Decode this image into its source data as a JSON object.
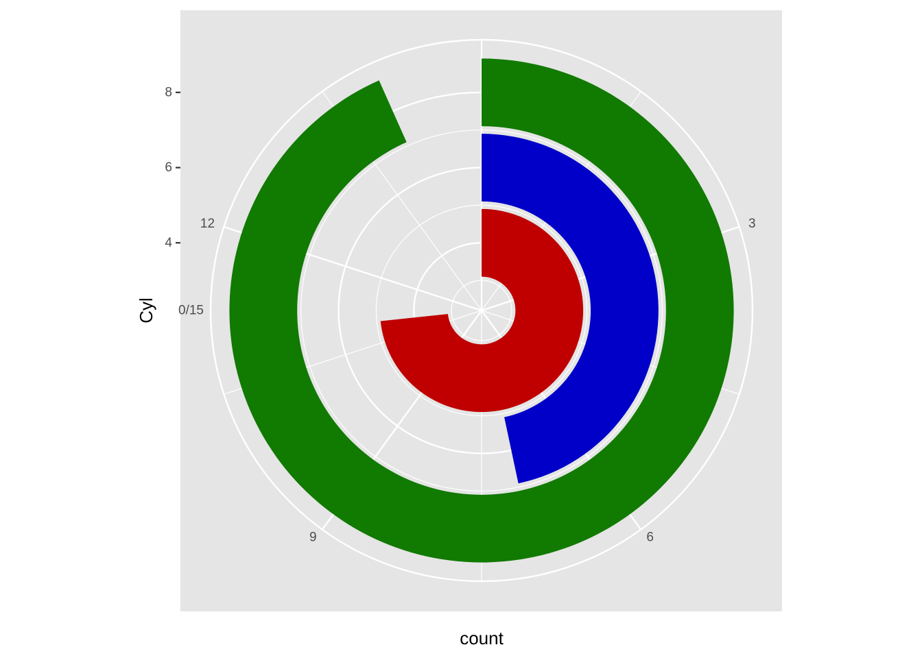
{
  "chart_data": {
    "type": "bar",
    "coord": "polar",
    "theta_variable": "count",
    "radial_variable": "Cyl",
    "xlabel": "count",
    "ylabel": "Cyl",
    "theta_range": [
      0,
      15
    ],
    "theta_breaks": [
      0,
      3,
      6,
      9,
      12
    ],
    "theta_labels": [
      "0/15",
      "3",
      "6",
      "9",
      "12"
    ],
    "r_breaks": [
      4,
      6,
      8
    ],
    "r_labels": [
      "4",
      "6",
      "8"
    ],
    "r_range": [
      2.2,
      9.4
    ],
    "bar_width": 1.8,
    "categories": [
      "4",
      "6",
      "8"
    ],
    "values": [
      11,
      7,
      14
    ],
    "colors": [
      "#C00000",
      "#0000C8",
      "#117A00"
    ],
    "background": "#E5E5E5",
    "grid": true,
    "legend": "none"
  }
}
